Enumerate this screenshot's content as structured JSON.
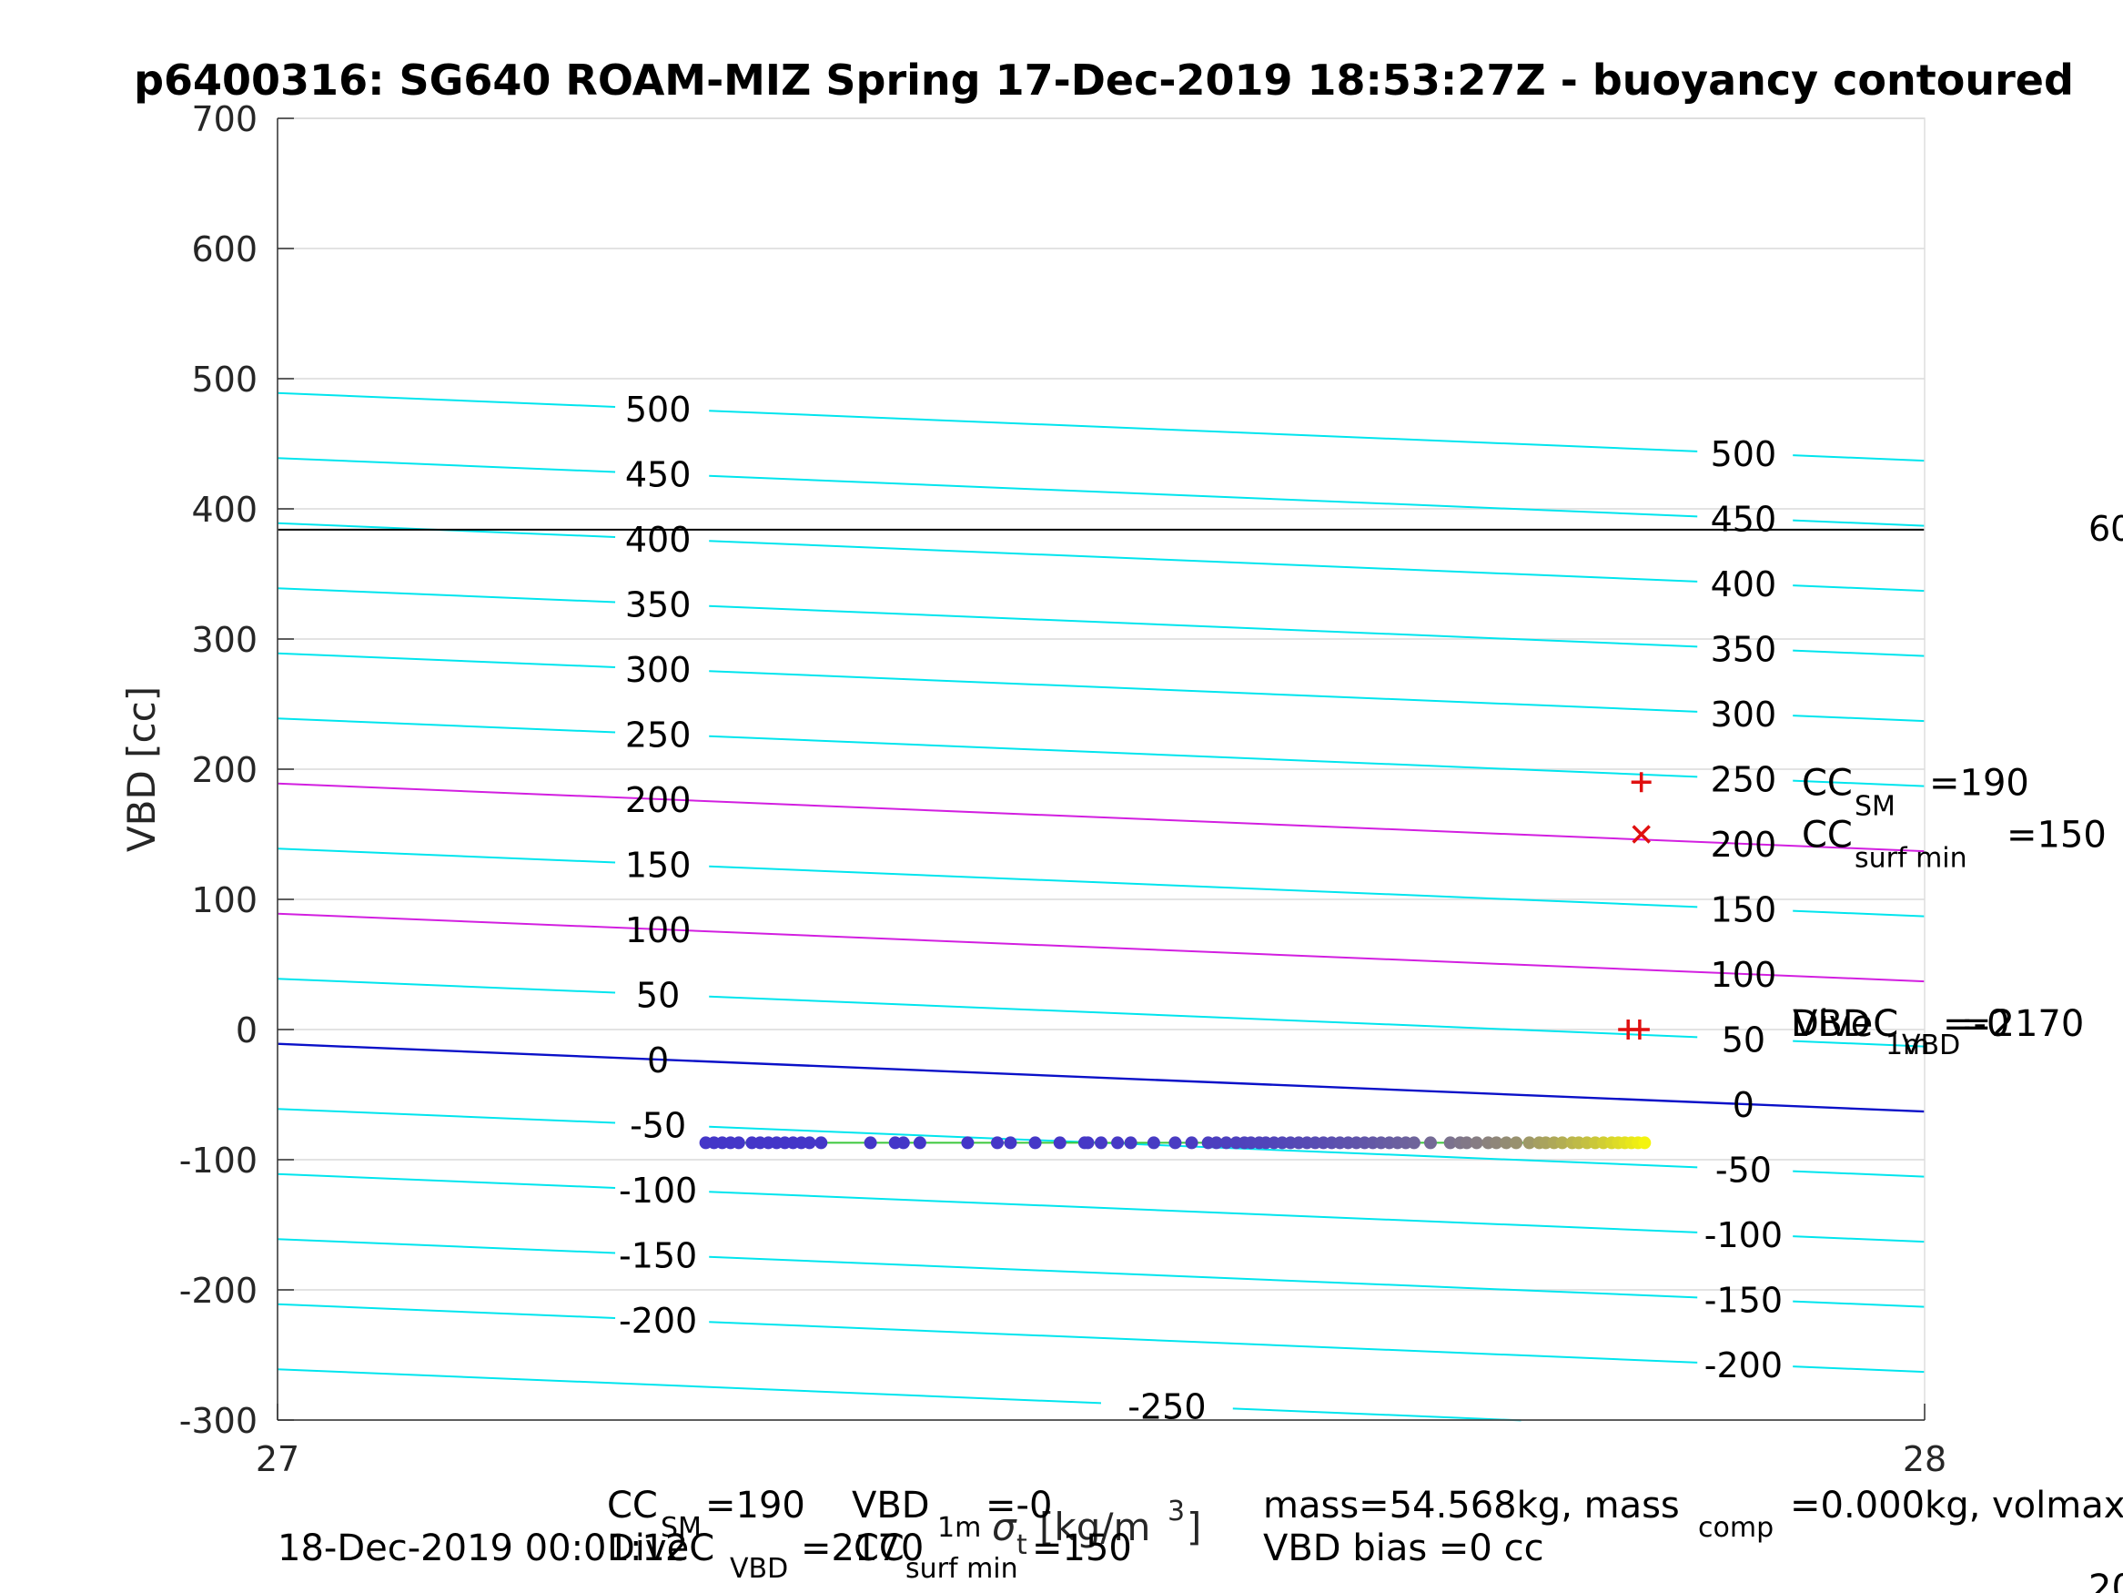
{
  "chart_data": {
    "type": "scatter",
    "title": "p6400316: SG640 ROAM-MIZ Spring 17-Dec-2019 18:53:27Z - buoyancy contoured",
    "xlabel_prefix": "σ",
    "xlabel_sub": "t",
    "xlabel_units": "[kg/m",
    "xlabel_units_sup": "3",
    "xlabel_units_close": "]",
    "ylabel": "VBD [cc]",
    "xlim": [
      27,
      28
    ],
    "ylim": [
      -300,
      700
    ],
    "x_ticks": [
      "27",
      "28"
    ],
    "y_ticks": [
      "-300",
      "-200",
      "-100",
      "0",
      "100",
      "200",
      "300",
      "400",
      "500",
      "600",
      "700"
    ],
    "grid": true,
    "contours": {
      "cyan_levels": [
        500,
        450,
        400,
        350,
        300,
        250,
        150,
        50,
        -50,
        -100,
        -150,
        -200,
        -250
      ],
      "magenta_levels": [
        200,
        100
      ],
      "blue_level": 0,
      "left_y_at_x27": {
        "500": 489,
        "450": 439,
        "400": 389,
        "350": 339,
        "300": 289,
        "250": 239,
        "200": 189,
        "150": 139,
        "100": 89,
        "50": 39,
        "0": -11,
        "-50": -61,
        "-100": -111,
        "-150": -161,
        "-200": -211,
        "-250": -261
      },
      "slope_per_unit_x": -52,
      "labels_left": [
        "500",
        "450",
        "400",
        "350",
        "300",
        "250",
        "200",
        "150",
        "100",
        "50",
        "0",
        "-50",
        "-100",
        "-150",
        "-200",
        "-250"
      ],
      "labels_right": [
        "500",
        "450",
        "400",
        "350",
        "300",
        "250",
        "200",
        "150",
        "100",
        "50",
        "0",
        "-50",
        "-100",
        "-150",
        "-200"
      ],
      "colors": {
        "cyan": "#00e5ee",
        "magenta": "#d21fe0",
        "blue": "#0a10c8"
      }
    },
    "horizontal_line": {
      "y": 384,
      "color": "#000000",
      "label": "60"
    },
    "scatter_series": {
      "x_start": 27.26,
      "x_end": 27.83,
      "y_start": -87,
      "y_end": -87,
      "color_start": "#4436c8",
      "color_end": "#f4f40e",
      "x_values": [
        27.26,
        27.265,
        27.27,
        27.275,
        27.28,
        27.288,
        27.293,
        27.298,
        27.303,
        27.308,
        27.313,
        27.318,
        27.323,
        27.33,
        27.36,
        27.375,
        27.38,
        27.39,
        27.419,
        27.437,
        27.445,
        27.46,
        27.475,
        27.49,
        27.492,
        27.5,
        27.51,
        27.518,
        27.532,
        27.545,
        27.555,
        27.565,
        27.57,
        27.576,
        27.582,
        27.587,
        27.591,
        27.596,
        27.6,
        27.605,
        27.61,
        27.615,
        27.62,
        27.625,
        27.63,
        27.635,
        27.64,
        27.645,
        27.65,
        27.655,
        27.66,
        27.665,
        27.67,
        27.675,
        27.68,
        27.685,
        27.69,
        27.7,
        27.712,
        27.718,
        27.722,
        27.728,
        27.735,
        27.74,
        27.746,
        27.752,
        27.76,
        27.766,
        27.77,
        27.775,
        27.78,
        27.786,
        27.79,
        27.795,
        27.8,
        27.805,
        27.81,
        27.814,
        27.818,
        27.822,
        27.826,
        27.83
      ]
    },
    "markers": [
      {
        "symbol": "+",
        "x": 27.828,
        "y": 190,
        "label": "CC",
        "label_sub": "SM",
        "label_value": "=190"
      },
      {
        "symbol": "x",
        "x": 27.828,
        "y": 150,
        "label": "CC",
        "label_sub": "surf min",
        "label_value": "=150"
      },
      {
        "symbol": "+",
        "x": 27.82,
        "y": 0,
        "label": "",
        "label_sub": "",
        "label_value": ""
      },
      {
        "symbol": "+",
        "x": 27.827,
        "y": 0,
        "label": "",
        "label_sub": "",
        "label_value": ""
      }
    ],
    "overlap_labels": {
      "a_main": "DiveC",
      "a_sub": "VBD",
      "a_value": "=2170",
      "b_main": "VBD",
      "b_sub": "1m",
      "b_value": "=-0"
    },
    "footer": {
      "timestamp": "18-Dec-2019 00:01:12",
      "cc_sm_main": "CC",
      "cc_sm_sub": "SM",
      "cc_sm_value": "=190",
      "vbd1m_main": "VBD",
      "vbd1m_sub": "1m",
      "vbd1m_value": "=-0",
      "divec_main": "DiveC",
      "divec_sub": "VBD",
      "divec_value": "=2170",
      "ccsurf_main": "CC",
      "ccsurf_sub": "surf min",
      "ccsurf_value": "=150",
      "mass_text": "mass=54.568kg, mass",
      "mass_sub": "comp",
      "mass_rest": "=0.000kg, volmax",
      "bias_text": "VBD bias =0 cc",
      "corner_cut": "20"
    }
  }
}
